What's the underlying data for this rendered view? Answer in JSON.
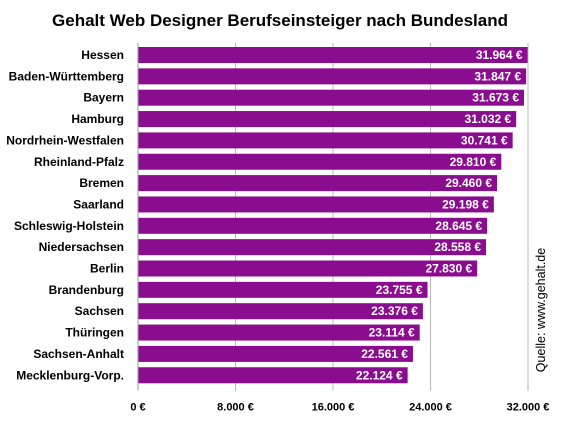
{
  "chart_data": {
    "type": "bar",
    "orientation": "horizontal",
    "title": "Gehalt Web Designer Berufseinsteiger nach Bundesland",
    "categories": [
      "Hessen",
      "Baden-Württemberg",
      "Bayern",
      "Hamburg",
      "Nordrhein-Westfalen",
      "Rheinland-Pfalz",
      "Bremen",
      "Saarland",
      "Schleswig-Holstein",
      "Niedersachsen",
      "Berlin",
      "Brandenburg",
      "Sachsen",
      "Thüringen",
      "Sachsen-Anhalt",
      "Mecklenburg-Vorp."
    ],
    "values": [
      31964,
      31847,
      31673,
      31032,
      30741,
      29810,
      29460,
      29198,
      28645,
      28558,
      27830,
      23755,
      23376,
      23114,
      22561,
      22124
    ],
    "value_labels": [
      "31.964 €",
      "31.847 €",
      "31.673 €",
      "31.032 €",
      "30.741 €",
      "29.810 €",
      "29.460 €",
      "29.198 €",
      "28.645 €",
      "28.558 €",
      "27.830 €",
      "23.755 €",
      "23.376 €",
      "23.114 €",
      "22.561 €",
      "22.124 €"
    ],
    "xlim": [
      0,
      32000
    ],
    "xticks": [
      0,
      8000,
      16000,
      24000,
      32000
    ],
    "xtick_labels": [
      "0 €",
      "8.000 €",
      "16.000 €",
      "24.000 €",
      "32.000 €"
    ],
    "xlabel": "",
    "ylabel": "",
    "grid": true,
    "legend": "none",
    "bar_color": "#8b0d8f",
    "label_color": "#ffffff",
    "source_label": "Quelle: www.gehalt.de"
  }
}
